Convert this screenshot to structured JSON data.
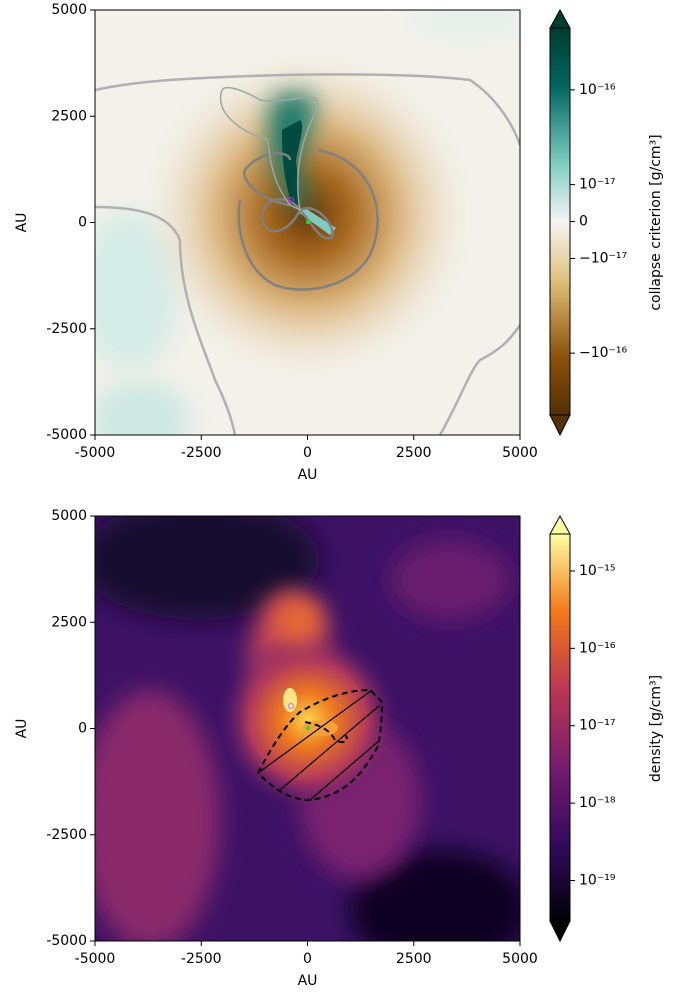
{
  "chart_data": [
    {
      "type": "heatmap",
      "xlabel": "AU",
      "ylabel": "AU",
      "xlim": [
        -5000,
        5000
      ],
      "ylim": [
        -5000,
        5000
      ],
      "xticks": [
        -5000,
        -2500,
        0,
        2500,
        5000
      ],
      "yticks": [
        -5000,
        -2500,
        0,
        2500,
        5000
      ],
      "colorbar": {
        "label": "collapse criterion [g/cm³]",
        "scale": "symlog",
        "linthresh": 1e-17,
        "linscale": 0.39,
        "clim": [
          -4.5e-16,
          4.5e-16
        ],
        "colormap": "BrBG",
        "ticks": [
          {
            "value": 1e-16,
            "label": "10⁻¹⁶"
          },
          {
            "value": 1e-17,
            "label": "10⁻¹⁷"
          },
          0,
          {
            "value": -1e-17,
            "label": "−10⁻¹⁷"
          },
          {
            "value": -1e-16,
            "label": "−10⁻¹⁶"
          }
        ]
      }
    },
    {
      "type": "heatmap",
      "xlabel": "AU",
      "ylabel": "AU",
      "xlim": [
        -5000,
        5000
      ],
      "ylim": [
        -5000,
        5000
      ],
      "xticks": [
        -5000,
        -2500,
        0,
        2500,
        5000
      ],
      "yticks": [
        -5000,
        -2500,
        0,
        2500,
        5000
      ],
      "colorbar": {
        "label": "density [g/cm³]",
        "scale": "log",
        "clim": [
          3e-20,
          3e-15
        ],
        "colormap": "inferno",
        "ticks": [
          {
            "value": 1e-15,
            "label": "10⁻¹⁵"
          },
          {
            "value": 1e-16,
            "label": "10⁻¹⁶"
          },
          {
            "value": 1e-17,
            "label": "10⁻¹⁷"
          },
          {
            "value": 1e-18,
            "label": "10⁻¹⁸"
          },
          {
            "value": 1e-19,
            "label": "10⁻¹⁹"
          }
        ]
      }
    }
  ]
}
